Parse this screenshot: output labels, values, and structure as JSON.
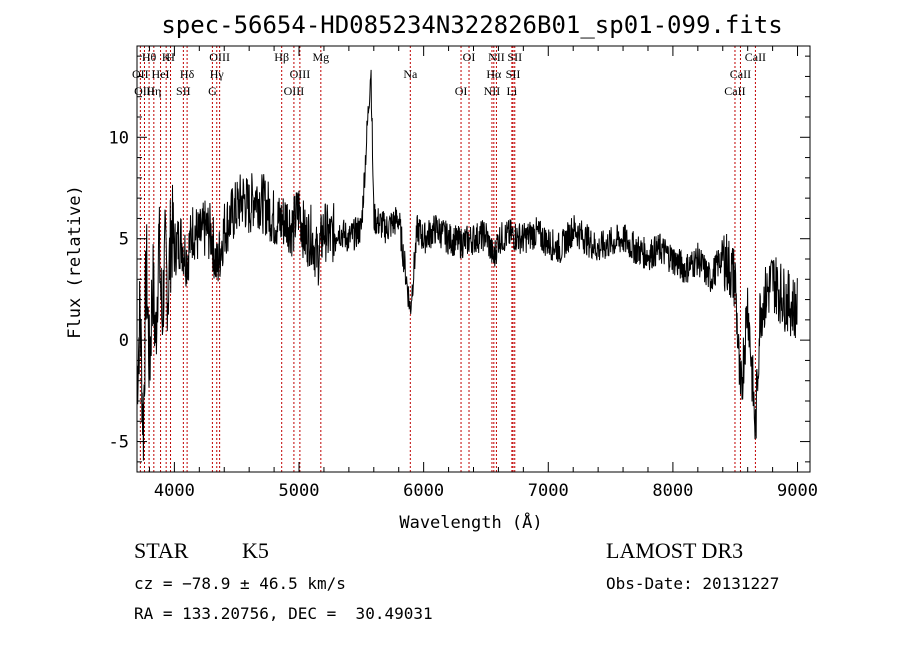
{
  "chart_data": {
    "type": "line",
    "title": "spec-56654-HD085234N322826B01_sp01-099.fits",
    "xlabel": "Wavelength (Å)",
    "ylabel": "Flux (relative)",
    "xlim": [
      3700,
      9100
    ],
    "ylim": [
      -6.5,
      14.5
    ],
    "x_ticks": [
      4000,
      5000,
      6000,
      7000,
      8000,
      9000
    ],
    "y_ticks": [
      -5,
      0,
      5,
      10
    ],
    "grid": false,
    "line_color": "#000000",
    "marker_color": "#c00000",
    "series": [
      {
        "x": [
          3700,
          3725,
          3750,
          3775,
          3800,
          3825,
          3850,
          3875,
          3900,
          3925,
          3950,
          3975,
          4000,
          4050,
          4100,
          4150,
          4200,
          4250,
          4300,
          4340,
          4400,
          4450,
          4500,
          4550,
          4600,
          4650,
          4700,
          4750,
          4800,
          4850,
          4900,
          4950,
          5000,
          5050,
          5100,
          5150,
          5200,
          5250,
          5300,
          5400,
          5500,
          5577,
          5600,
          5700,
          5800,
          5893,
          5950,
          6000,
          6100,
          6200,
          6300,
          6400,
          6500,
          6563,
          6600,
          6700,
          6800,
          6900,
          7000,
          7100,
          7200,
          7300,
          7400,
          7500,
          7600,
          7700,
          7800,
          7900,
          8000,
          8100,
          8200,
          8300,
          8400,
          8500,
          8542,
          8600,
          8662,
          8700,
          8800,
          8900,
          9000
        ],
        "y": [
          -2.0,
          1.5,
          -4.5,
          4.0,
          -1.5,
          3.0,
          0.0,
          5.0,
          1.0,
          4.0,
          2.5,
          5.5,
          4.5,
          5.0,
          4.0,
          5.5,
          5.0,
          5.5,
          5.2,
          3.5,
          5.5,
          6.0,
          6.5,
          7.0,
          6.5,
          7.2,
          6.8,
          6.5,
          6.0,
          5.8,
          6.0,
          5.5,
          6.5,
          5.0,
          5.2,
          4.0,
          5.5,
          5.0,
          5.5,
          5.0,
          5.5,
          13.5,
          6.0,
          5.5,
          6.0,
          1.5,
          5.5,
          5.0,
          5.5,
          5.0,
          4.8,
          5.0,
          5.2,
          4.0,
          5.0,
          5.2,
          5.0,
          5.3,
          4.8,
          4.5,
          5.5,
          5.0,
          4.5,
          4.8,
          5.0,
          4.5,
          4.2,
          4.5,
          4.0,
          3.5,
          4.0,
          3.0,
          4.2,
          3.0,
          -3.0,
          2.0,
          -4.5,
          1.5,
          3.0,
          2.0,
          1.5
        ]
      }
    ],
    "lines": [
      {
        "label": "Hθ",
        "x": 3797
      },
      {
        "label": "OII",
        "x": 3727
      },
      {
        "label": "OIII",
        "x": 3760
      },
      {
        "label": "K",
        "x": 3934
      },
      {
        "label": "HeI",
        "x": 3889
      },
      {
        "label": "Hη",
        "x": 3835
      },
      {
        "label": "H",
        "x": 3969
      },
      {
        "label": "Hδ",
        "x": 4102
      },
      {
        "label": "SII",
        "x": 4072
      },
      {
        "label": "OIII",
        "x": 4363
      },
      {
        "label": "Hγ",
        "x": 4340
      },
      {
        "label": "G",
        "x": 4305
      },
      {
        "label": "Hβ",
        "x": 4861
      },
      {
        "label": "OIII",
        "x": 5007
      },
      {
        "label": "OIII",
        "x": 4959
      },
      {
        "label": "Mg",
        "x": 5175
      },
      {
        "label": "Na",
        "x": 5893
      },
      {
        "label": "OI",
        "x": 6300
      },
      {
        "label": "OI",
        "x": 6364
      },
      {
        "label": "Hα",
        "x": 6563
      },
      {
        "label": "NII",
        "x": 6548
      },
      {
        "label": "NII",
        "x": 6584
      },
      {
        "label": "SII",
        "x": 6717
      },
      {
        "label": "Li",
        "x": 6708
      },
      {
        "label": "SII",
        "x": 6731
      },
      {
        "label": "CaII",
        "x": 8542
      },
      {
        "label": "CaII",
        "x": 8498
      },
      {
        "label": "CaII",
        "x": 8662
      }
    ]
  },
  "info": {
    "object_class": "STAR",
    "subclass": "K5",
    "survey": "LAMOST DR3",
    "cz": "cz = −78.9 ± 46.5 km/s",
    "obs_date": "Obs-Date: 20131227",
    "coords": "RA = 133.20756, DEC =  30.49031"
  }
}
